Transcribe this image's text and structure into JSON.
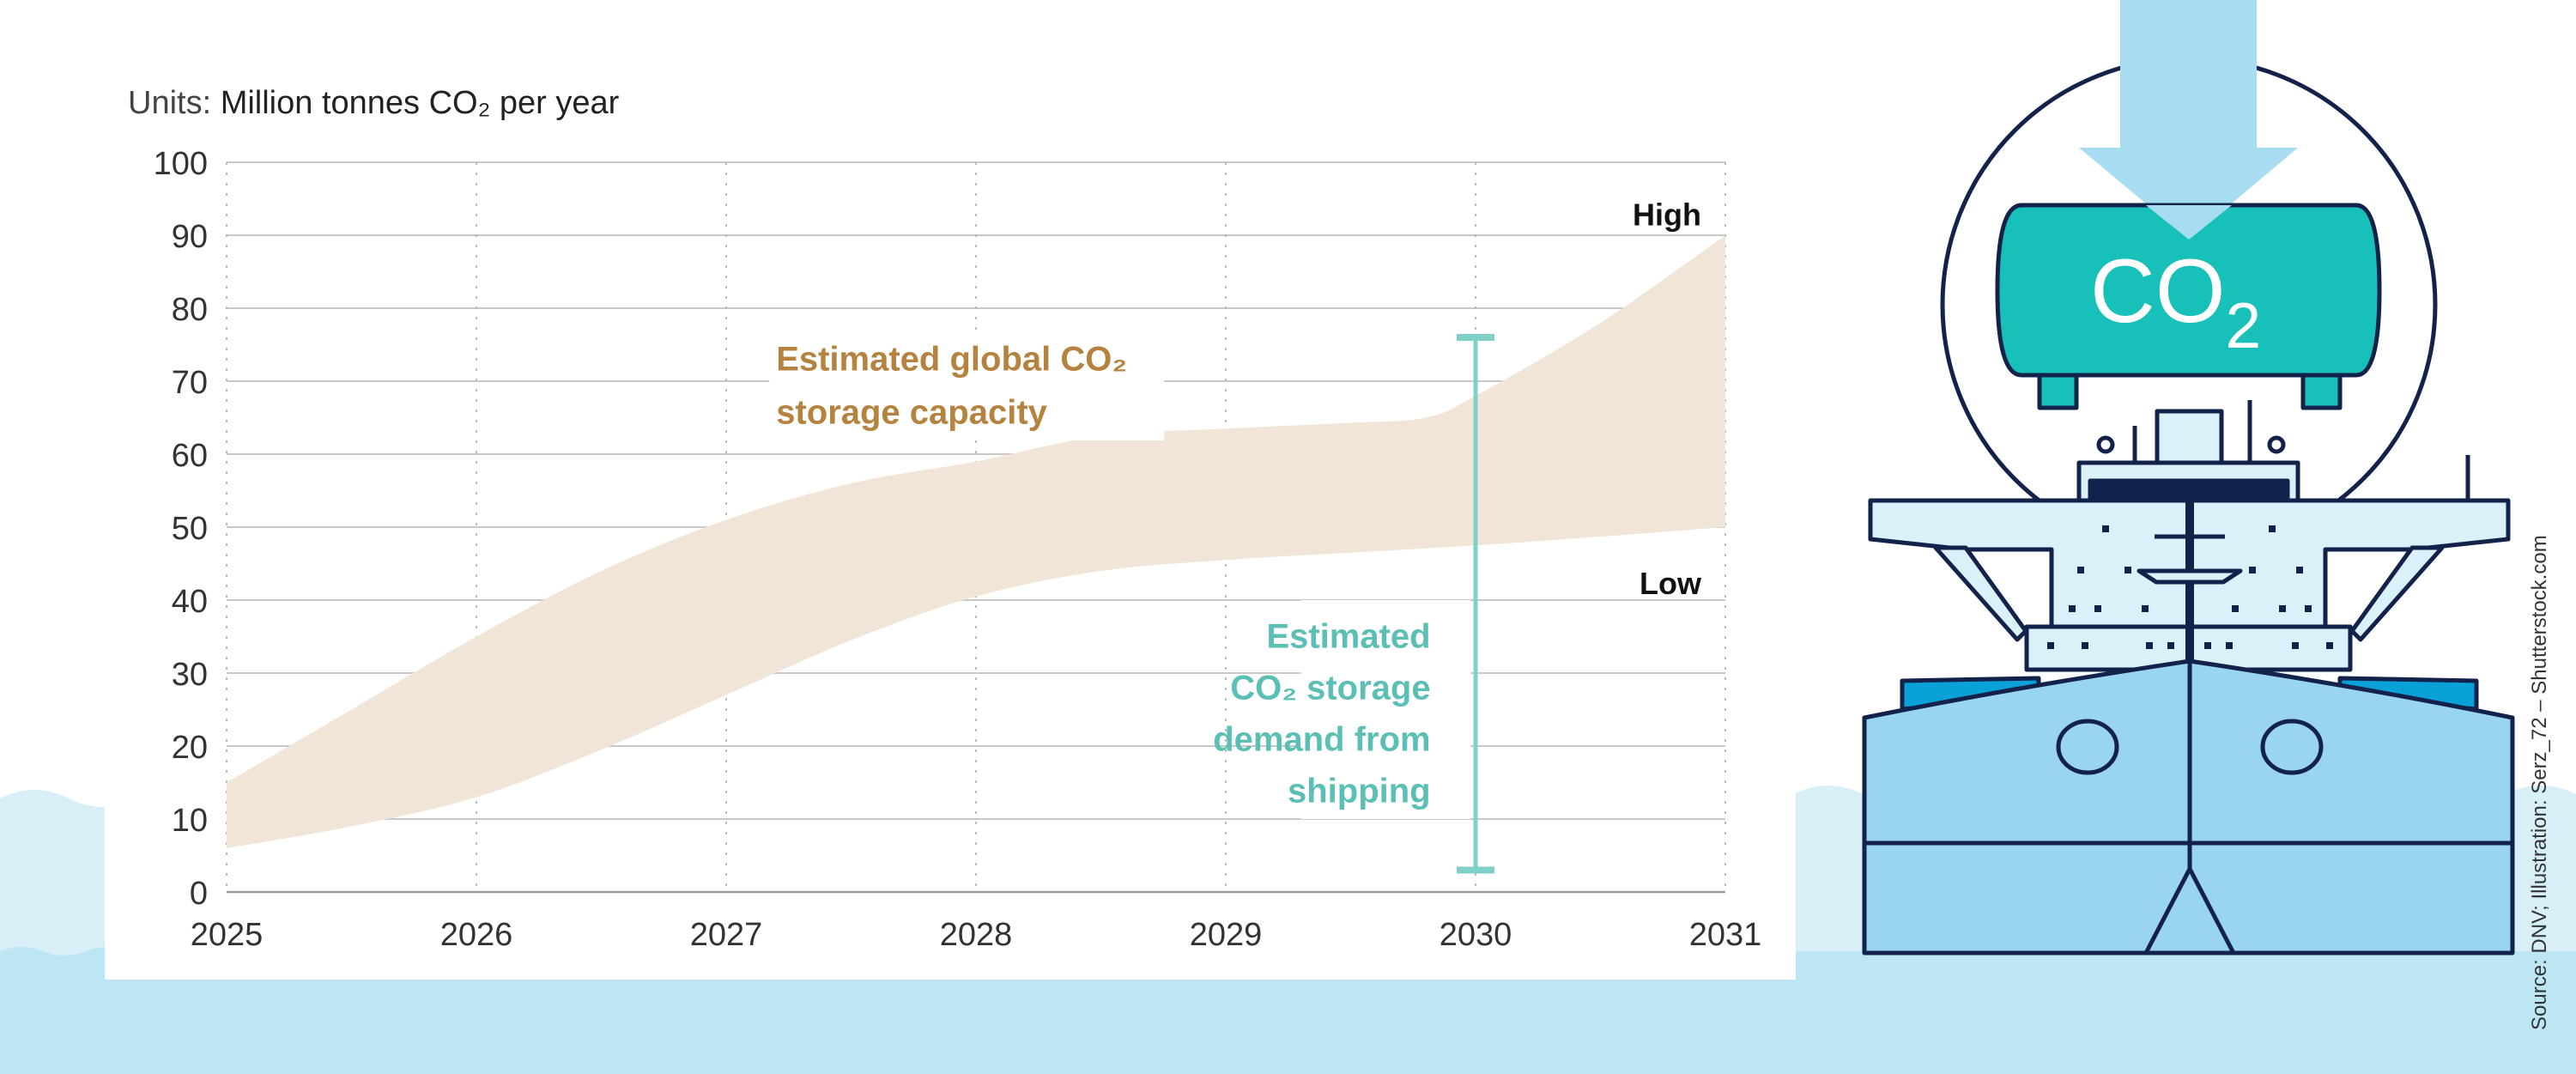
{
  "chart_data": {
    "type": "area",
    "units_prefix": "Units: ",
    "units": "Million tonnes CO₂ per year",
    "x_ticks": [
      "2025",
      "2026",
      "2027",
      "2028",
      "2029",
      "2030",
      "2031"
    ],
    "y_ticks": [
      "0",
      "10",
      "20",
      "30",
      "40",
      "50",
      "60",
      "70",
      "80",
      "90",
      "100"
    ],
    "xlim": [
      2025,
      2031
    ],
    "ylim": [
      0,
      100
    ],
    "grid": {
      "horizontal": "solid",
      "vertical": "dotted"
    },
    "series": [
      {
        "name": "Estimated global CO₂ storage capacity",
        "label_lines": [
          "Estimated global CO₂",
          "storage capacity"
        ],
        "color": "#f0e5d6",
        "label_color": "#b5833f",
        "high": {
          "label": "High",
          "x": [
            2025,
            2025.5,
            2026,
            2026.5,
            2027,
            2027.5,
            2028,
            2028.5,
            2029,
            2029.5,
            2029.8,
            2030,
            2030.5,
            2031
          ],
          "y": [
            15,
            25,
            35,
            44,
            51,
            56,
            59,
            62.5,
            63.5,
            64.3,
            65,
            68,
            78,
            90
          ]
        },
        "low": {
          "label": "Low",
          "x": [
            2025,
            2025.5,
            2026,
            2026.5,
            2027,
            2027.5,
            2028,
            2028.5,
            2029,
            2029.5,
            2030,
            2030.5,
            2031
          ],
          "y": [
            6,
            9,
            13,
            19.5,
            27,
            34.5,
            40.5,
            44,
            45.5,
            46.5,
            47.5,
            48.7,
            50
          ]
        }
      },
      {
        "name": "Estimated CO₂ storage demand from shipping",
        "label_lines": [
          "Estimated",
          "CO₂ storage",
          "demand from",
          "shipping"
        ],
        "color": "#7fd0c8",
        "label_color": "#5bbfb5",
        "range": {
          "x": 2030,
          "min": 3,
          "max": 76
        }
      }
    ]
  },
  "illustration": {
    "tank_label": "CO",
    "tank_label_sub": "2",
    "colors": {
      "tank": "#17c0b9",
      "outline": "#13224a",
      "arrow": "#a8dcf0",
      "hull": "#99d5ef",
      "deck": "#dcf0fa",
      "water": "#bde6f5"
    }
  },
  "source": "Source: DNV; Illustration: Serz_72 – Shutterstock.com"
}
